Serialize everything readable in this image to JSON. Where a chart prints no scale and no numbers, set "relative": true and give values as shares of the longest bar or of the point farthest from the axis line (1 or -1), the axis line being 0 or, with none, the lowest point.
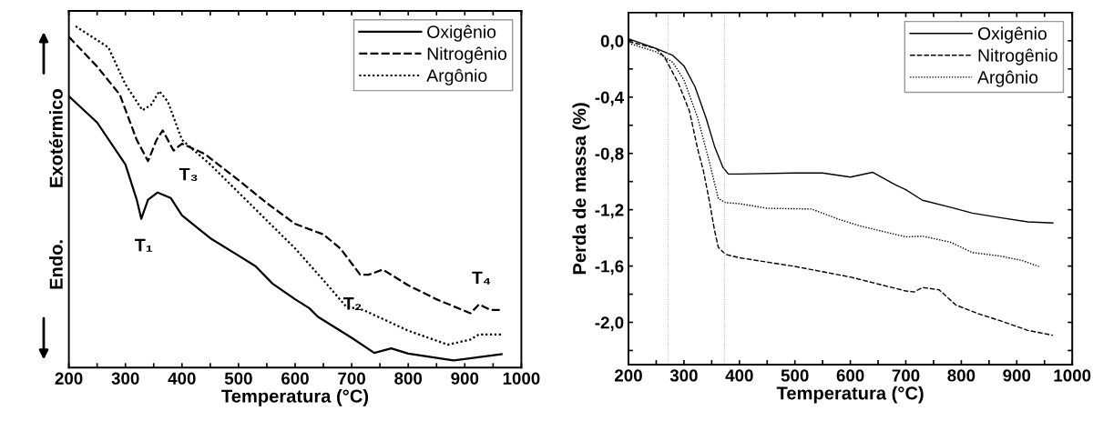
{
  "chart_data": [
    {
      "type": "line",
      "relative": true,
      "xlabel": "Temperatura (°C)",
      "ylabel": "Endo.          Exotérmico",
      "xlim": [
        200,
        1000
      ],
      "xticks": [
        200,
        {
          "value": 250,
          "label": null
        },
        300,
        {
          "value": 350,
          "label": null
        },
        400,
        {
          "value": 450,
          "label": null
        },
        500,
        {
          "value": 550,
          "label": null
        },
        600,
        {
          "value": 650,
          "label": null
        },
        700,
        {
          "value": 750,
          "label": null
        },
        800,
        {
          "value": 850,
          "label": null
        },
        900,
        {
          "value": 950,
          "label": null
        },
        1000
      ],
      "tick_labels": "x",
      "legend": "top right",
      "grid": false,
      "annotations": [
        {
          "text": "T₁",
          "x": 328,
          "y": 0.436
        },
        {
          "text": "T₂",
          "x": 715,
          "y": 0.272
        },
        {
          "text": "T₃",
          "x": 385,
          "y": 0.636
        },
        {
          "text": "T₄",
          "x": 925,
          "y": 0.185
        }
      ],
      "series": [
        {
          "name": "Oxigênio",
          "color": "#000000",
          "line_style": "solid",
          "x": [
            200,
            250,
            300,
            320,
            328,
            340,
            357,
            380,
            400,
            450,
            500,
            530,
            560,
            600,
            625,
            640,
            700,
            740,
            770,
            800,
            880,
            965
          ],
          "values": [
            0.795,
            0.718,
            0.595,
            0.492,
            0.436,
            0.492,
            0.513,
            0.497,
            0.446,
            0.379,
            0.328,
            0.297,
            0.246,
            0.2,
            0.174,
            0.149,
            0.087,
            0.043,
            0.056,
            0.041,
            0.021,
            0.039
          ]
        },
        {
          "name": "Nitrogênio",
          "color": "#000000",
          "line_style": "dashed",
          "x": [
            200,
            250,
            290,
            320,
            340,
            355,
            366,
            385,
            400,
            440,
            500,
            550,
            600,
            650,
            680,
            715,
            730,
            755,
            800,
            850,
            910,
            925,
            945,
            962
          ],
          "values": [
            0.969,
            0.882,
            0.8,
            0.667,
            0.605,
            0.667,
            0.695,
            0.636,
            0.656,
            0.626,
            0.549,
            0.482,
            0.421,
            0.39,
            0.349,
            0.272,
            0.272,
            0.287,
            0.241,
            0.2,
            0.159,
            0.185,
            0.169,
            0.169
          ]
        },
        {
          "name": "Argônio",
          "color": "#000000",
          "line_style": "dotted",
          "x": [
            212,
            270,
            300,
            330,
            345,
            360,
            375,
            400,
            450,
            500,
            550,
            600,
            650,
            690,
            720,
            800,
            870,
            910,
            925,
            965
          ],
          "values": [
            1.0,
            0.938,
            0.83,
            0.754,
            0.769,
            0.81,
            0.779,
            0.667,
            0.595,
            0.513,
            0.431,
            0.349,
            0.256,
            0.179,
            0.169,
            0.108,
            0.067,
            0.082,
            0.097,
            0.097
          ]
        }
      ]
    },
    {
      "type": "line",
      "xlabel": "Temperatura (°C)",
      "ylabel": "Perda de massa (%)",
      "xlim": [
        200,
        1000
      ],
      "xticks": [
        200,
        {
          "value": 250,
          "label": null
        },
        300,
        {
          "value": 350,
          "label": null
        },
        400,
        {
          "value": 450,
          "label": null
        },
        500,
        {
          "value": 550,
          "label": null
        },
        600,
        {
          "value": 650,
          "label": null
        },
        700,
        {
          "value": 750,
          "label": null
        },
        800,
        {
          "value": 850,
          "label": null
        },
        900,
        {
          "value": 950,
          "label": null
        },
        1000
      ],
      "ylim": [
        -2.3,
        0.2
      ],
      "yticks": [
        {
          "value": 0.0,
          "label": "0,0"
        },
        {
          "value": -0.2,
          "label": null
        },
        {
          "value": -0.4,
          "label": "-0,4"
        },
        {
          "value": -0.6,
          "label": null
        },
        {
          "value": -0.8,
          "label": "-0,8"
        },
        {
          "value": -1.0,
          "label": null
        },
        {
          "value": -1.2,
          "label": "-1,2"
        },
        {
          "value": -1.4,
          "label": null
        },
        {
          "value": -1.6,
          "label": "-1,6"
        },
        {
          "value": -1.8,
          "label": null
        },
        {
          "value": -2.0,
          "label": "-2,0"
        },
        {
          "value": -2.2,
          "label": null
        }
      ],
      "legend": "top right",
      "grid": false,
      "ref_lines": [
        {
          "axis": "x",
          "value": 271,
          "color": "#bbbbbb",
          "line_style": "dotted"
        },
        {
          "axis": "x",
          "value": 373,
          "color": "#bbbbbb",
          "line_style": "dotted"
        }
      ],
      "series": [
        {
          "name": "Oxigênio",
          "color": "#000000",
          "line_style": "solid",
          "x": [
            200,
            250,
            280,
            300,
            320,
            340,
            355,
            370,
            380,
            400,
            500,
            550,
            600,
            640,
            680,
            700,
            730,
            780,
            820,
            870,
            920,
            965
          ],
          "values": [
            0.015,
            -0.055,
            -0.104,
            -0.178,
            -0.327,
            -0.55,
            -0.748,
            -0.897,
            -0.946,
            -0.946,
            -0.939,
            -0.939,
            -0.968,
            -0.934,
            -1.021,
            -1.058,
            -1.133,
            -1.182,
            -1.224,
            -1.256,
            -1.286,
            -1.294
          ]
        },
        {
          "name": "Nitrogênio",
          "color": "#000000",
          "line_style": "dashed",
          "x": [
            200,
            250,
            265,
            290,
            310,
            325,
            335,
            345,
            355,
            362,
            375,
            400,
            500,
            600,
            700,
            715,
            730,
            760,
            790,
            830,
            870,
            920,
            965
          ],
          "values": [
            -0.005,
            -0.055,
            -0.116,
            -0.302,
            -0.5,
            -0.773,
            -0.922,
            -1.12,
            -1.343,
            -1.467,
            -1.517,
            -1.541,
            -1.603,
            -1.678,
            -1.777,
            -1.784,
            -1.752,
            -1.769,
            -1.876,
            -1.938,
            -1.988,
            -2.057,
            -2.092
          ]
        },
        {
          "name": "Argônio",
          "color": "#000000",
          "line_style": "dotted",
          "x": [
            200,
            250,
            280,
            300,
            325,
            345,
            362,
            375,
            400,
            450,
            530,
            580,
            620,
            700,
            730,
            780,
            820,
            870,
            910,
            940
          ],
          "values": [
            -0.017,
            -0.079,
            -0.154,
            -0.278,
            -0.55,
            -0.848,
            -1.12,
            -1.15,
            -1.157,
            -1.19,
            -1.195,
            -1.269,
            -1.318,
            -1.393,
            -1.388,
            -1.43,
            -1.504,
            -1.529,
            -1.561,
            -1.603
          ]
        }
      ]
    }
  ]
}
